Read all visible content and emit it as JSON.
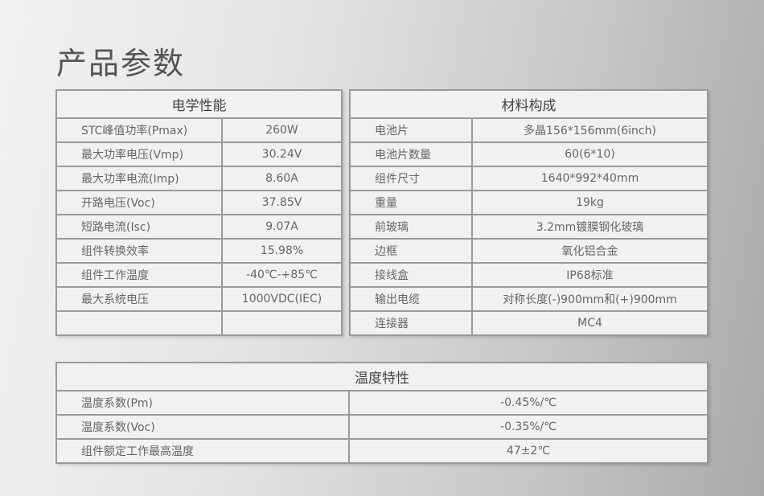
{
  "title": "产品参数",
  "electrical": {
    "header": "电学性能",
    "rows": [
      [
        "STC峰值功率(Pmax)",
        "260W"
      ],
      [
        "最大功率电压(Vmp)",
        "30.24V"
      ],
      [
        "最大功率电流(Imp)",
        "8.60A"
      ],
      [
        "开路电压(Voc)",
        "37.85V"
      ],
      [
        "短路电流(Isc)",
        "9.07A"
      ],
      [
        "组件转换效率",
        "15.98%"
      ],
      [
        "组件工作温度",
        "-40℃-+85℃"
      ],
      [
        "最大系统电压",
        "1000VDC(IEC)"
      ],
      [
        "",
        ""
      ]
    ]
  },
  "material": {
    "header": "材料构成",
    "rows": [
      [
        "电池片",
        "多晶156*156mm(6inch)"
      ],
      [
        "电池片数量",
        "60(6*10)"
      ],
      [
        "组件尺寸",
        "1640*992*40mm"
      ],
      [
        "重量",
        "19kg"
      ],
      [
        "前玻璃",
        "3.2mm镀膜钢化玻璃"
      ],
      [
        "边框",
        "氧化铝合金"
      ],
      [
        "接线盒",
        "IP68标准"
      ],
      [
        "输出电缆",
        "对称长度(-)900mm和(+)900mm"
      ],
      [
        "连接器",
        "MC4"
      ]
    ]
  },
  "temperature": {
    "header": "温度特性",
    "rows": [
      [
        "温度系数(Pm)",
        "-0.45%/℃"
      ],
      [
        "温度系数(Voc)",
        "-0.35%/℃"
      ],
      [
        "组件额定工作最高温度",
        "47±2℃"
      ]
    ]
  }
}
